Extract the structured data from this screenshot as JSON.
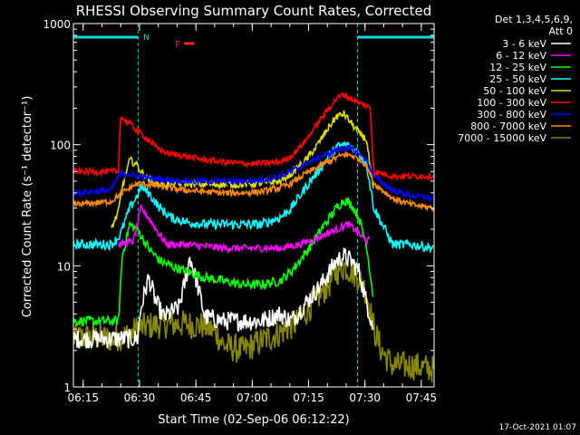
{
  "chart_data": {
    "type": "line",
    "title": "RHESSI Observing Summary Count Rates, Corrected",
    "xlabel": "Start Time (02-Sep-06 06:12:22)",
    "ylabel": "Corrected Count Rate (s⁻¹ detector⁻¹)",
    "y_scale": "log",
    "ylim": [
      1,
      1000
    ],
    "xlim_minutes": [
      0,
      96
    ],
    "x_ticks": [
      {
        "label": "06:15",
        "minutes": 2.6
      },
      {
        "label": "06:30",
        "minutes": 17.6
      },
      {
        "label": "06:45",
        "minutes": 32.6
      },
      {
        "label": "07:00",
        "minutes": 47.6
      },
      {
        "label": "07:15",
        "minutes": 62.6
      },
      {
        "label": "07:30",
        "minutes": 77.6
      },
      {
        "label": "07:45",
        "minutes": 92.6
      }
    ],
    "y_ticks": [
      {
        "label": "1",
        "value": 1
      },
      {
        "label": "10",
        "value": 10
      },
      {
        "label": "100",
        "value": 100
      },
      {
        "label": "1000",
        "value": 1000
      }
    ],
    "legend_header": [
      "Det 1,3,4,5,6,9,",
      "Att 0"
    ],
    "legend_position": "right",
    "annotations": {
      "night_label": "N",
      "flare_label": "F",
      "night_intervals_minutes": [
        [
          0,
          17.2
        ],
        [
          75.6,
          96
        ]
      ],
      "flare_interval_minutes": [
        [
          29.5,
          32.2
        ]
      ]
    },
    "timestamp": "17-Oct-2021 01:07",
    "series": [
      {
        "name": "3 - 6 keV",
        "color": "#ffffff",
        "noise": 0.08,
        "x": [
          0,
          17,
          18,
          20,
          22,
          24,
          28,
          30,
          31,
          33,
          35,
          40,
          50,
          55,
          58,
          62,
          66,
          70,
          72,
          74,
          76,
          78,
          80
        ],
        "y": [
          2.5,
          2.5,
          4.5,
          8,
          5,
          3.8,
          4.5,
          8,
          12,
          7,
          3.8,
          3.5,
          3.5,
          4,
          3.5,
          5,
          7,
          11,
          12,
          11,
          9,
          5,
          3
        ]
      },
      {
        "name": "6 - 12 keV",
        "color": "#ff00ff",
        "noise": 0.03,
        "x": [
          12,
          16,
          18,
          20,
          23,
          25,
          30,
          40,
          50,
          55,
          60,
          65,
          70,
          73,
          75,
          77,
          79
        ],
        "y": [
          15,
          16,
          30,
          25,
          18,
          15,
          15,
          14,
          14,
          14,
          15,
          17,
          20,
          22,
          20,
          17,
          16
        ]
      },
      {
        "name": "12 - 25 keV",
        "color": "#00ff00",
        "noise": 0.04,
        "x": [
          0,
          12,
          13,
          15,
          17,
          20,
          23,
          26,
          30,
          35,
          40,
          45,
          50,
          55,
          58,
          62,
          66,
          70,
          72,
          74,
          76,
          78,
          80
        ],
        "y": [
          3.5,
          3.5,
          12,
          22,
          20,
          14,
          11,
          10,
          9,
          8,
          7.5,
          7,
          7,
          7.5,
          9,
          13,
          20,
          30,
          35,
          32,
          25,
          15,
          5
        ]
      },
      {
        "name": "25 - 50 keV",
        "color": "#00ffff",
        "noise": 0.04,
        "x": [
          0,
          10,
          12,
          13,
          15,
          17,
          18,
          20,
          23,
          26,
          30,
          35,
          40,
          45,
          50,
          55,
          58,
          62,
          65,
          68,
          70,
          72,
          74,
          76,
          78,
          80,
          85,
          90,
          96
        ],
        "y": [
          15,
          15,
          17,
          20,
          30,
          38,
          45,
          40,
          30,
          25,
          23,
          22,
          22,
          22,
          22,
          25,
          30,
          45,
          60,
          80,
          95,
          100,
          95,
          85,
          70,
          30,
          15,
          15,
          14
        ]
      },
      {
        "name": "50 - 100 keV",
        "color": "#dddd00",
        "noise": 0.03,
        "x": [
          10,
          12,
          13,
          15,
          17,
          18,
          20,
          22,
          24,
          28,
          30,
          35,
          40,
          45,
          50,
          55,
          58,
          62,
          65,
          68,
          70,
          72,
          74,
          76,
          78,
          80
        ],
        "y": [
          20,
          28,
          45,
          75,
          68,
          60,
          52,
          48,
          47,
          48,
          48,
          47,
          47,
          47,
          48,
          50,
          58,
          75,
          100,
          140,
          170,
          180,
          150,
          125,
          110,
          38
        ]
      },
      {
        "name": "100 - 300 keV",
        "color": "#ff0000",
        "noise": 0.025,
        "x": [
          0,
          12,
          12.5,
          15,
          17,
          20,
          22,
          25,
          30,
          35,
          40,
          45,
          50,
          55,
          58,
          62,
          65,
          68,
          70,
          72,
          74,
          76,
          78,
          79,
          80,
          85,
          90,
          96
        ],
        "y": [
          60,
          60,
          170,
          150,
          130,
          110,
          95,
          85,
          80,
          75,
          72,
          70,
          70,
          72,
          80,
          110,
          150,
          200,
          240,
          260,
          240,
          220,
          210,
          200,
          60,
          55,
          55,
          55
        ]
      },
      {
        "name": "300 - 800 keV",
        "color": "#0000ff",
        "noise": 0.025,
        "x": [
          0,
          10,
          12,
          13,
          15,
          17,
          20,
          23,
          26,
          30,
          35,
          40,
          45,
          50,
          55,
          58,
          62,
          66,
          70,
          72,
          74,
          76,
          78,
          80,
          85,
          90,
          96
        ],
        "y": [
          40,
          42,
          55,
          58,
          57,
          55,
          53,
          52,
          51,
          50,
          50,
          50,
          50,
          51,
          55,
          60,
          70,
          80,
          90,
          95,
          92,
          85,
          75,
          55,
          42,
          38,
          36
        ]
      },
      {
        "name": "800 - 7000 keV",
        "color": "#ff8800",
        "noise": 0.025,
        "x": [
          0,
          10,
          12,
          14,
          16,
          18,
          20,
          25,
          30,
          35,
          40,
          45,
          50,
          55,
          58,
          62,
          66,
          70,
          72,
          74,
          76,
          78,
          80,
          85,
          90,
          96
        ],
        "y": [
          32,
          34,
          38,
          42,
          46,
          48,
          47,
          44,
          42,
          41,
          40,
          40,
          41,
          44,
          48,
          58,
          68,
          78,
          83,
          82,
          76,
          68,
          48,
          36,
          32,
          30
        ]
      },
      {
        "name": "7000 - 15000 keV",
        "color": "#888800",
        "noise": 0.12,
        "x": [
          0,
          5,
          10,
          15,
          17,
          20,
          25,
          30,
          35,
          38,
          40,
          45,
          50,
          55,
          60,
          65,
          68,
          70,
          72,
          74,
          76,
          78,
          80,
          82,
          85,
          90,
          96
        ],
        "y": [
          2.5,
          2.6,
          2.5,
          2.7,
          3,
          3.2,
          3.3,
          3.3,
          3.2,
          2.8,
          2.2,
          2,
          2.4,
          2.8,
          3.5,
          5.5,
          7,
          9,
          10,
          9,
          8,
          6,
          3,
          2,
          1.5,
          1.5,
          1.4
        ]
      }
    ]
  }
}
